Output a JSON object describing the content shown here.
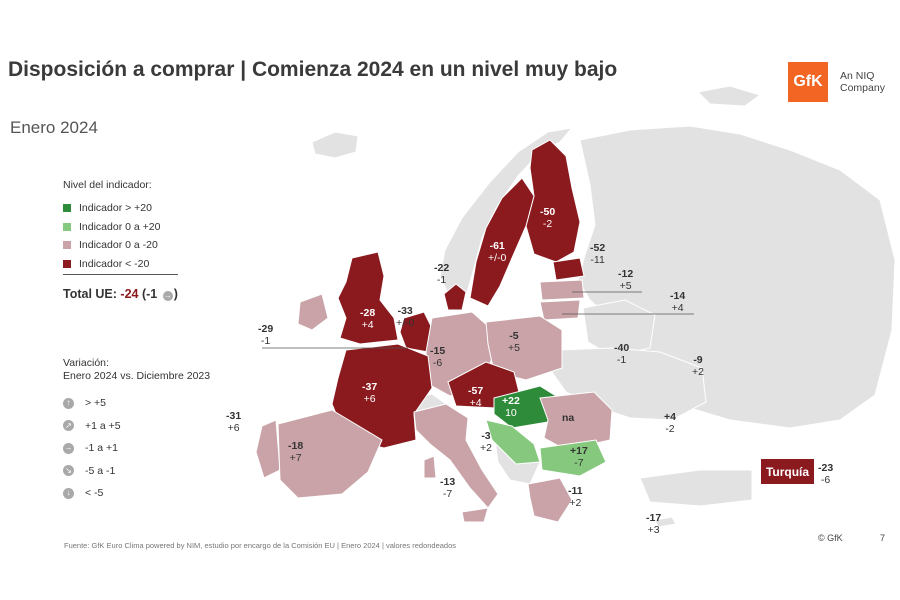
{
  "title": "Disposición a comprar | Comienza 2024 en un nivel muy bajo",
  "subtitle": "Enero 2024",
  "brand": {
    "logo_text": "GfK",
    "tag_line1": "An NIQ",
    "tag_line2": "Company"
  },
  "colors": {
    "dark_green": "#2e8b3a",
    "light_green": "#86c97e",
    "pink": "#c9a3a8",
    "dark_red": "#8b1a1f",
    "gray": "#e2e2e2"
  },
  "legend": {
    "title": "Nivel del indicador:",
    "items": [
      {
        "label": "Indicador > +20",
        "color": "#2e8b3a"
      },
      {
        "label": "Indicador 0 a +20",
        "color": "#86c97e"
      },
      {
        "label": "Indicador 0 a -20",
        "color": "#c9a3a8"
      },
      {
        "label": "Indicador < -20",
        "color": "#8b1a1f"
      }
    ],
    "total_label": "Total UE:",
    "total_value": "-24",
    "total_change": "(-1",
    "total_close": ")"
  },
  "variation": {
    "title_line1": "Variación:",
    "title_line2": "Enero 2024 vs. Diciembre 2023",
    "items": [
      {
        "icon": "arrow-up-icon",
        "glyph": "↑",
        "label": "> +5"
      },
      {
        "icon": "arrow-up-right-icon",
        "glyph": "↗",
        "label": "+1 a +5"
      },
      {
        "icon": "arrow-right-icon",
        "glyph": "→",
        "label": "-1 a +1"
      },
      {
        "icon": "arrow-down-right-icon",
        "glyph": "↘",
        "label": "-5 a -1"
      },
      {
        "icon": "arrow-down-icon",
        "glyph": "↓",
        "label": "< -5"
      }
    ]
  },
  "countries": [
    {
      "id": "fi",
      "value": "-50",
      "change": "-2"
    },
    {
      "id": "se",
      "value": "-61",
      "change": "+/-0"
    },
    {
      "id": "ee",
      "value": "-52",
      "change": "-11"
    },
    {
      "id": "lv",
      "value": "-12",
      "change": "+5"
    },
    {
      "id": "lt",
      "value": "-14",
      "change": "+4"
    },
    {
      "id": "dk",
      "value": "-22",
      "change": "-1"
    },
    {
      "id": "ie",
      "value": "-29",
      "change": "-1"
    },
    {
      "id": "uk",
      "value": "-28",
      "change": "+4"
    },
    {
      "id": "nl",
      "value": "-33",
      "change": "+/-0"
    },
    {
      "id": "de",
      "value": "-15",
      "change": "-6"
    },
    {
      "id": "pl",
      "value": "-5",
      "change": "+5"
    },
    {
      "id": "ua",
      "value": "-40",
      "change": "-1"
    },
    {
      "id": "by",
      "value": "-9",
      "change": "+2"
    },
    {
      "id": "fr",
      "value": "-37",
      "change": "+6"
    },
    {
      "id": "at",
      "value": "-57",
      "change": "+4"
    },
    {
      "id": "hu",
      "value": "+22",
      "change": "10"
    },
    {
      "id": "ro",
      "value": "na",
      "change": ""
    },
    {
      "id": "md",
      "value": "+4",
      "change": "-2"
    },
    {
      "id": "pt",
      "value": "-31",
      "change": "+6"
    },
    {
      "id": "es",
      "value": "-18",
      "change": "+7"
    },
    {
      "id": "hr",
      "value": "-3",
      "change": "+2"
    },
    {
      "id": "bg",
      "value": "+17",
      "change": "-7"
    },
    {
      "id": "it",
      "value": "-13",
      "change": "-7"
    },
    {
      "id": "gr",
      "value": "-11",
      "change": "+2"
    },
    {
      "id": "cy",
      "value": "-17",
      "change": "+3"
    },
    {
      "id": "tr",
      "value": "-23",
      "change": "-6"
    }
  ],
  "turkey_label": "Turquía",
  "source": "Fuente: GfK Euro Clima powered by NIM, estudio por encargo de la Comisión EU | Enero 2024 | valores redondeados",
  "copyright": "© GfK",
  "page_number": "7"
}
